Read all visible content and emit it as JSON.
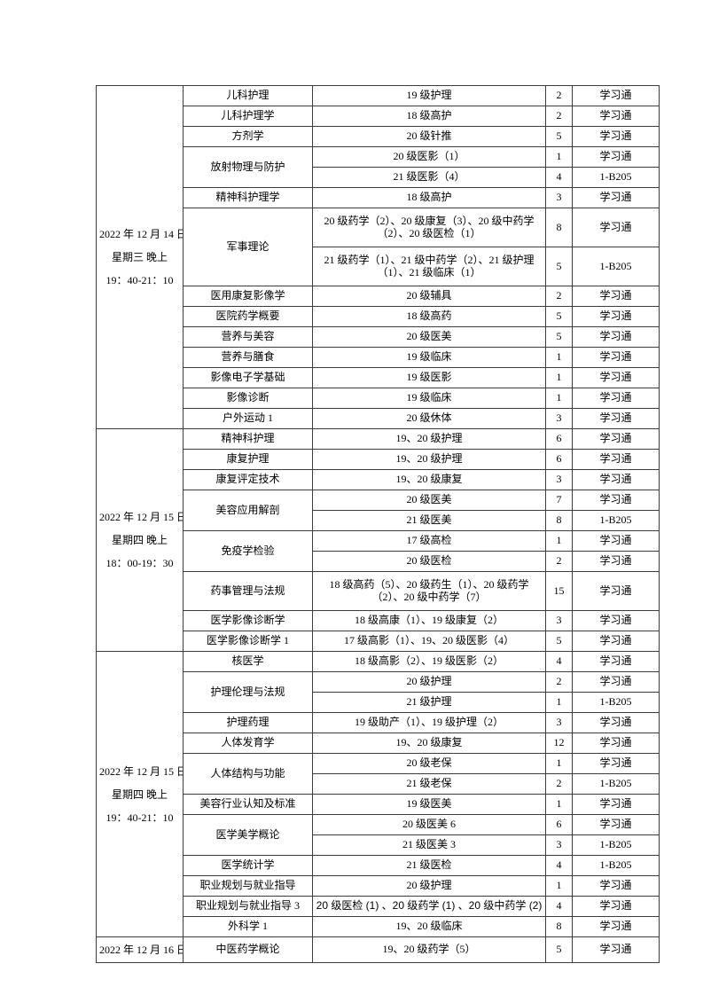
{
  "colors": {
    "text": "#000000",
    "highlight_red": "#ff0000",
    "border": "#3c3c3c",
    "page_background": "#ffffff"
  },
  "table": {
    "semantic": "exam-schedule-table",
    "blocks": [
      {
        "date_lines": [
          "2022 年 12 月 14 日",
          "星期三 晚上",
          "19：40-21：10"
        ],
        "courses": [
          {
            "name": "儿科护理",
            "rows": [
              {
                "classes": "19 级护理",
                "count": "2",
                "room": "学习通"
              }
            ]
          },
          {
            "name": "儿科护理学",
            "rows": [
              {
                "classes": "18 级高护",
                "count": "2",
                "room": "学习通"
              }
            ]
          },
          {
            "name": "方剂学",
            "rows": [
              {
                "classes": "20 级针推",
                "count": "5",
                "room": "学习通"
              }
            ]
          },
          {
            "name": "放射物理与防护",
            "rows": [
              {
                "classes": "20 级医影（1）",
                "count": "1",
                "room": "学习通"
              },
              {
                "classes": "21 级医影（4）",
                "red": true,
                "count": "4",
                "room": "1-B205"
              }
            ]
          },
          {
            "name": "精神科护理学",
            "rows": [
              {
                "classes": "18 级高护",
                "count": "3",
                "room": "学习通"
              }
            ]
          },
          {
            "name": "军事理论",
            "rows": [
              {
                "classes": "20 级药学（2）、20 级康复（3）、20 级中药学（2）、20 级医检（1）",
                "tall": true,
                "count": "8",
                "room": "学习通"
              },
              {
                "classes": "21 级药学（1）、21 级中药学（2）、21 级护理（1）、21 级临床（1）",
                "red": true,
                "tall": true,
                "count": "5",
                "room": "1-B205"
              }
            ]
          },
          {
            "name": "医用康复影像学",
            "rows": [
              {
                "classes": "20 级辅具",
                "count": "2",
                "room": "学习通"
              }
            ]
          },
          {
            "name": "医院药学概要",
            "rows": [
              {
                "classes": "18 级高药",
                "count": "5",
                "room": "学习通"
              }
            ]
          },
          {
            "name": "营养与美容",
            "rows": [
              {
                "classes": "20 级医美",
                "count": "5",
                "room": "学习通"
              }
            ]
          },
          {
            "name": "营养与膳食",
            "rows": [
              {
                "classes": "19 级临床",
                "count": "1",
                "room": "学习通"
              }
            ]
          },
          {
            "name": "影像电子学基础",
            "rows": [
              {
                "classes": "19 级医影",
                "count": "1",
                "room": "学习通"
              }
            ]
          },
          {
            "name": "影像诊断",
            "rows": [
              {
                "classes": "19 级临床",
                "count": "1",
                "room": "学习通"
              }
            ]
          },
          {
            "name": "户外运动 1",
            "rows": [
              {
                "classes": "20 级休体",
                "count": "3",
                "room": "学习通"
              }
            ]
          }
        ]
      },
      {
        "date_lines": [
          "2022 年 12 月 15 日",
          "星期四 晚上",
          "18：00-19：30"
        ],
        "courses": [
          {
            "name": "精神科护理",
            "rows": [
              {
                "classes": "19、20 级护理",
                "count": "6",
                "room": "学习通"
              }
            ]
          },
          {
            "name": "康复护理",
            "rows": [
              {
                "classes": "19、20 级护理",
                "count": "6",
                "room": "学习通"
              }
            ]
          },
          {
            "name": "康复评定技术",
            "rows": [
              {
                "classes": "19、20 级康复",
                "count": "3",
                "room": "学习通"
              }
            ]
          },
          {
            "name": "美容应用解剖",
            "rows": [
              {
                "classes": "20 级医美",
                "count": "7",
                "room": "学习通"
              },
              {
                "classes": "21 级医美",
                "red": true,
                "count": "8",
                "room": "1-B205"
              }
            ]
          },
          {
            "name": "免疫学检验",
            "rows": [
              {
                "classes": "17 级高检",
                "count": "1",
                "room": "学习通"
              },
              {
                "classes": "20 级医检",
                "count": "2",
                "room": "学习通"
              }
            ]
          },
          {
            "name": "药事管理与法规",
            "rows": [
              {
                "classes": "18 级高药（5）、20 级药生（1）、20 级药学（2）、20 级中药学（7）",
                "tall": true,
                "count": "15",
                "room": "学习通"
              }
            ]
          },
          {
            "name": "医学影像诊断学",
            "rows": [
              {
                "classes": "18 级高康（1）、19 级康复（2）",
                "count": "3",
                "room": "学习通"
              }
            ]
          },
          {
            "name": "医学影像诊断学 1",
            "rows": [
              {
                "classes": "17 级高影（1）、19、20 级医影（4）",
                "count": "5",
                "room": "学习通"
              }
            ]
          }
        ]
      },
      {
        "date_lines": [
          "2022 年 12 月 15 日",
          "星期四 晚上",
          "19：40-21：10"
        ],
        "courses": [
          {
            "name": "核医学",
            "rows": [
              {
                "classes": "18 级高影（2）、19 级医影（2）",
                "count": "4",
                "room": "学习通"
              }
            ]
          },
          {
            "name": "护理伦理与法规",
            "rows": [
              {
                "classes": "20 级护理",
                "count": "2",
                "room": "学习通"
              },
              {
                "classes": "21 级护理",
                "red": true,
                "count": "1",
                "room": "1-B205"
              }
            ]
          },
          {
            "name": "护理药理",
            "rows": [
              {
                "classes": "19 级助产（1）、19 级护理（2）",
                "count": "3",
                "room": "学习通"
              }
            ]
          },
          {
            "name": "人体发育学",
            "rows": [
              {
                "classes": "19、20 级康复",
                "count": "12",
                "room": "学习通"
              }
            ]
          },
          {
            "name": "人体结构与功能",
            "rows": [
              {
                "classes": "20 级老保",
                "count": "1",
                "room": "学习通"
              },
              {
                "classes": "21 级老保",
                "red": true,
                "count": "2",
                "room": "1-B205"
              }
            ]
          },
          {
            "name": "美容行业认知及标准",
            "rows": [
              {
                "classes": "19 级医美",
                "count": "1",
                "room": "学习通"
              }
            ]
          },
          {
            "name": "医学美学概论",
            "rows": [
              {
                "classes": "20 级医美 6",
                "count": "6",
                "room": "学习通"
              },
              {
                "classes": "21 级医美 3",
                "red": true,
                "count": "3",
                "room": "1-B205"
              }
            ]
          },
          {
            "name": "医学统计学",
            "rows": [
              {
                "classes": "21 级医检",
                "red": true,
                "count": "4",
                "room": "1-B205"
              }
            ]
          },
          {
            "name": "职业规划与就业指导",
            "rows": [
              {
                "classes": "20 级护理",
                "count": "1",
                "room": "学习通"
              }
            ]
          },
          {
            "name": "职业规划与就业指导 3",
            "rows": [
              {
                "classes": "20 级医检 (1) 、20 级药学 (1) 、20 级中药学 (2)",
                "sans": true,
                "count": "4",
                "room": "学习通"
              }
            ]
          },
          {
            "name": "外科学 1",
            "rows": [
              {
                "classes": "19、20 级临床",
                "count": "8",
                "room": "学习通"
              }
            ]
          }
        ]
      },
      {
        "date_lines": [
          "2022 年 12 月 16 日"
        ],
        "courses": [
          {
            "name": "中医药学概论",
            "rows": [
              {
                "classes": "19、20 级药学（5）",
                "count": "5",
                "room": "学习通"
              }
            ]
          }
        ]
      }
    ]
  }
}
